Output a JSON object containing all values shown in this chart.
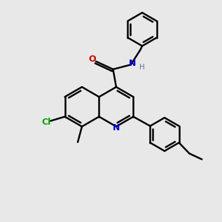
{
  "bg": "#e8e8e8",
  "bc": "#000000",
  "nc": "#0000cc",
  "oc": "#cc0000",
  "clc": "#00aa00",
  "hc": "#557788",
  "lw": 1.8,
  "fs": 9.0,
  "fs_small": 7.5
}
